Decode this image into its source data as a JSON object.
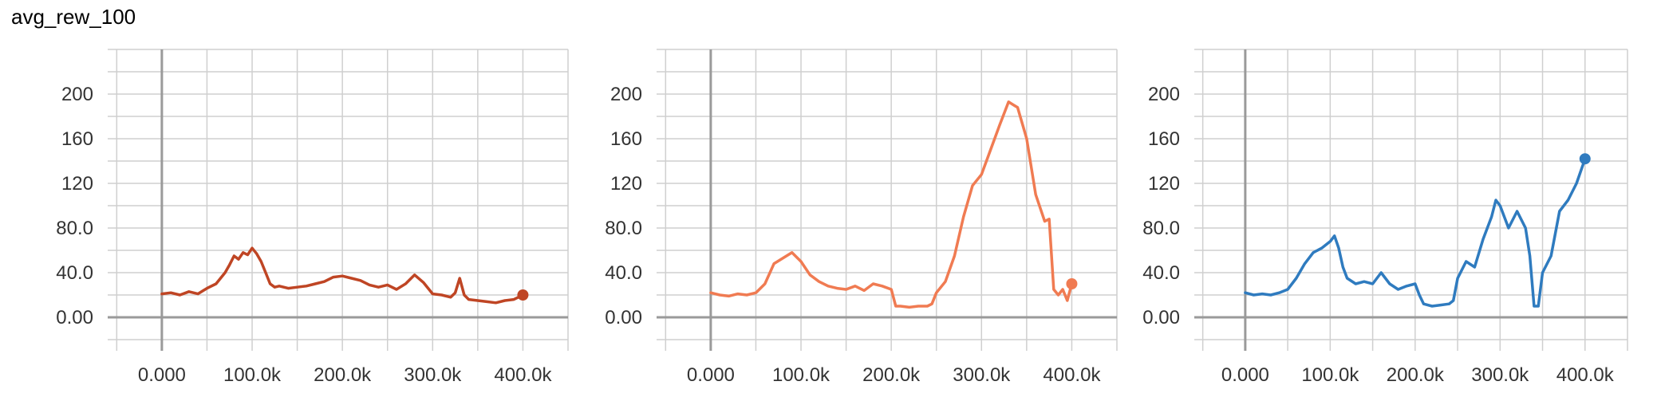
{
  "header": {
    "title": "avg_rew_100"
  },
  "chart_data": [
    {
      "type": "line",
      "color": "#bf4524",
      "xlim": [
        -60000,
        450000
      ],
      "ylim": [
        -30,
        240
      ],
      "x_ticks": [
        0,
        100000,
        200000,
        300000,
        400000
      ],
      "x_tick_labels": [
        "0.000",
        "100.0k",
        "200.0k",
        "300.0k",
        "400.0k"
      ],
      "y_ticks": [
        0,
        40,
        80,
        120,
        160,
        200
      ],
      "y_tick_labels": [
        "0.00",
        "40.0",
        "80.0",
        "120",
        "160",
        "200"
      ],
      "grid": true,
      "series": [
        {
          "x": [
            0,
            10000,
            20000,
            30000,
            40000,
            50000,
            60000,
            70000,
            75000,
            80000,
            85000,
            90000,
            95000,
            100000,
            105000,
            110000,
            115000,
            120000,
            125000,
            130000,
            140000,
            150000,
            160000,
            170000,
            180000,
            190000,
            200000,
            210000,
            220000,
            230000,
            240000,
            250000,
            260000,
            270000,
            280000,
            290000,
            300000,
            310000,
            320000,
            325000,
            330000,
            335000,
            340000,
            350000,
            360000,
            370000,
            380000,
            390000,
            395000,
            400000
          ],
          "y": [
            21,
            22,
            20,
            23,
            21,
            26,
            30,
            40,
            47,
            55,
            52,
            58,
            56,
            62,
            57,
            50,
            40,
            30,
            27,
            28,
            26,
            27,
            28,
            30,
            32,
            36,
            37,
            35,
            33,
            29,
            27,
            29,
            25,
            30,
            38,
            31,
            21,
            20,
            18,
            22,
            35,
            20,
            16,
            15,
            14,
            13,
            15,
            16,
            18,
            20
          ]
        }
      ]
    },
    {
      "type": "line",
      "color": "#f07b52",
      "xlim": [
        -60000,
        450000
      ],
      "ylim": [
        -30,
        240
      ],
      "x_ticks": [
        0,
        100000,
        200000,
        300000,
        400000
      ],
      "x_tick_labels": [
        "0.000",
        "100.0k",
        "200.0k",
        "300.0k",
        "400.0k"
      ],
      "y_ticks": [
        0,
        40,
        80,
        120,
        160,
        200
      ],
      "y_tick_labels": [
        "0.00",
        "40.0",
        "80.0",
        "120",
        "160",
        "200"
      ],
      "grid": true,
      "series": [
        {
          "x": [
            0,
            10000,
            20000,
            30000,
            40000,
            50000,
            60000,
            70000,
            80000,
            90000,
            100000,
            110000,
            120000,
            130000,
            140000,
            150000,
            160000,
            170000,
            180000,
            190000,
            200000,
            205000,
            210000,
            220000,
            230000,
            240000,
            245000,
            250000,
            260000,
            270000,
            280000,
            290000,
            300000,
            310000,
            320000,
            330000,
            340000,
            350000,
            360000,
            370000,
            375000,
            380000,
            385000,
            390000,
            395000,
            400000
          ],
          "y": [
            22,
            20,
            19,
            21,
            20,
            22,
            30,
            48,
            53,
            58,
            50,
            38,
            32,
            28,
            26,
            25,
            28,
            24,
            30,
            28,
            25,
            10,
            10,
            9,
            10,
            10,
            12,
            22,
            32,
            55,
            90,
            118,
            128,
            150,
            172,
            193,
            188,
            160,
            110,
            86,
            88,
            25,
            20,
            25,
            15,
            30
          ]
        }
      ]
    },
    {
      "type": "line",
      "color": "#2f7bbf",
      "xlim": [
        -60000,
        450000
      ],
      "ylim": [
        -30,
        240
      ],
      "x_ticks": [
        0,
        100000,
        200000,
        300000,
        400000
      ],
      "x_tick_labels": [
        "0.000",
        "100.0k",
        "200.0k",
        "300.0k",
        "400.0k"
      ],
      "y_ticks": [
        0,
        40,
        80,
        120,
        160,
        200
      ],
      "y_tick_labels": [
        "0.00",
        "40.0",
        "80.0",
        "120",
        "160",
        "200"
      ],
      "grid": true,
      "series": [
        {
          "x": [
            0,
            10000,
            20000,
            30000,
            40000,
            50000,
            60000,
            70000,
            80000,
            90000,
            100000,
            105000,
            110000,
            115000,
            120000,
            130000,
            140000,
            150000,
            160000,
            170000,
            180000,
            190000,
            200000,
            205000,
            210000,
            220000,
            230000,
            240000,
            245000,
            250000,
            260000,
            270000,
            280000,
            290000,
            295000,
            300000,
            310000,
            320000,
            330000,
            335000,
            340000,
            345000,
            350000,
            360000,
            370000,
            380000,
            390000,
            400000
          ],
          "y": [
            22,
            20,
            21,
            20,
            22,
            25,
            35,
            48,
            58,
            62,
            68,
            73,
            62,
            45,
            35,
            30,
            32,
            30,
            40,
            30,
            25,
            28,
            30,
            20,
            12,
            10,
            11,
            12,
            15,
            35,
            50,
            45,
            70,
            90,
            105,
            100,
            80,
            95,
            80,
            55,
            10,
            10,
            40,
            55,
            95,
            105,
            120,
            142
          ]
        }
      ]
    }
  ]
}
